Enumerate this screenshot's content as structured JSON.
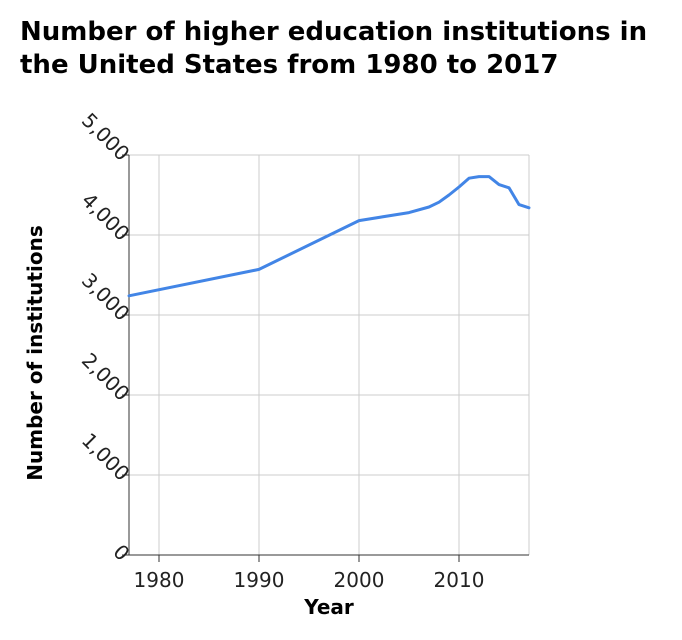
{
  "chart_data": {
    "type": "line",
    "title": "Number of higher education institutions in the United States from 1980 to 2017",
    "xlabel": "Year",
    "ylabel": "Number of institutions",
    "xlim": [
      1977,
      2017
    ],
    "ylim": [
      0,
      5000
    ],
    "x_ticks": [
      1980,
      1990,
      2000,
      2010
    ],
    "y_ticks": [
      0,
      1000,
      2000,
      3000,
      4000,
      5000
    ],
    "x_tick_labels": [
      "1980",
      "1990",
      "2000",
      "2010"
    ],
    "y_tick_labels": [
      "0",
      "1,000",
      "2,000",
      "3,000",
      "4,000",
      "5,000"
    ],
    "grid": true,
    "line_color": "#4285e6",
    "series": [
      {
        "x": [
          1977,
          1990,
          2000,
          2005,
          2007,
          2008,
          2009,
          2010,
          2011,
          2012,
          2013,
          2014,
          2015,
          2016,
          2017
        ],
        "values": [
          3240,
          3570,
          4180,
          4280,
          4350,
          4410,
          4500,
          4600,
          4710,
          4730,
          4730,
          4630,
          4590,
          4380,
          4340
        ]
      }
    ]
  }
}
